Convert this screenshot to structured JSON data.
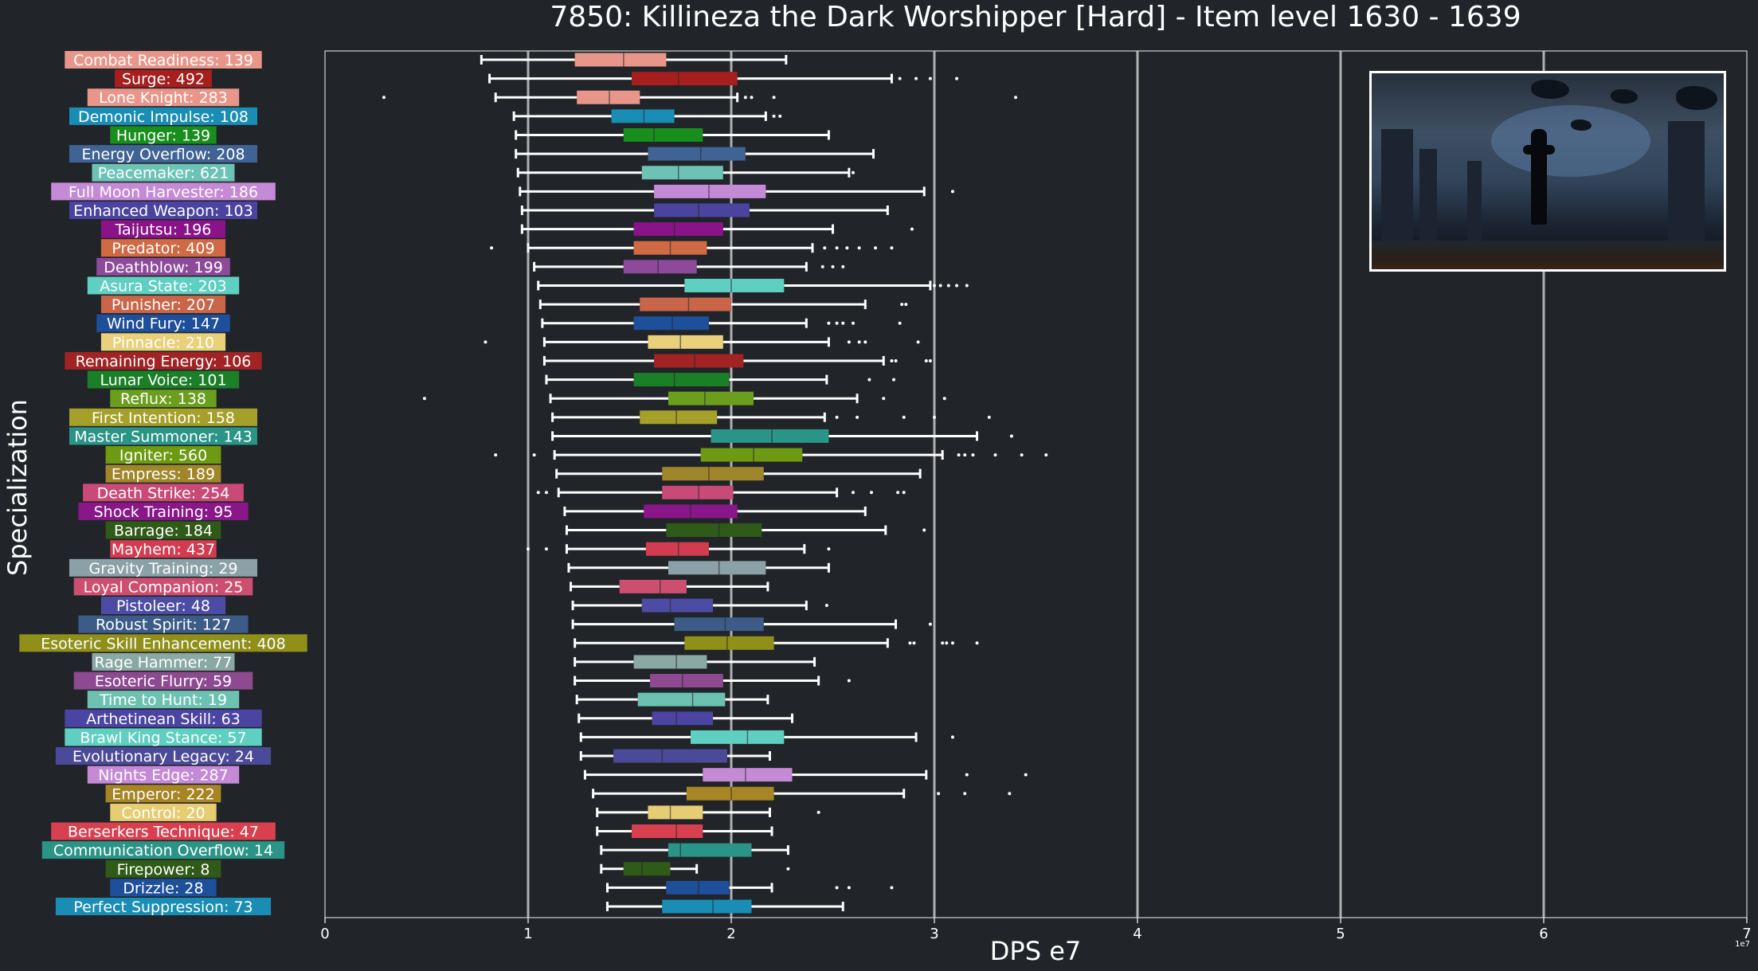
{
  "chart_data": {
    "type": "box",
    "title": "7850: Killineza the Dark Worshipper [Hard] - Item level 1630 - 1639",
    "xlabel": "DPS e7",
    "ylabel": "Specialization",
    "offset_label": "1e7",
    "xlim": [
      0,
      7
    ],
    "x_ticks": [
      "0",
      "1",
      "2",
      "3",
      "4",
      "5",
      "6",
      "7"
    ],
    "grid": "vertical",
    "whisker_color": "#ffffff",
    "series": [
      {
        "label": "Combat Readiness: 139",
        "color": "#e8968a",
        "wl": 0.77,
        "q1": 1.23,
        "med": 1.47,
        "q3": 1.68,
        "wh": 2.27,
        "fliers": []
      },
      {
        "label": "Surge: 492",
        "color": "#a61e1e",
        "wl": 0.81,
        "q1": 1.51,
        "med": 1.74,
        "q3": 2.03,
        "wh": 2.79,
        "fliers": [
          2.83,
          2.91,
          2.98,
          3.11
        ]
      },
      {
        "label": "Lone Knight: 283",
        "color": "#e8968a",
        "wl": 0.84,
        "q1": 1.24,
        "med": 1.4,
        "q3": 1.55,
        "wh": 2.03,
        "fliers": [
          0.29,
          2.07,
          2.1,
          2.21,
          3.4
        ]
      },
      {
        "label": "Demonic Impulse: 108",
        "color": "#1a8db5",
        "wl": 0.93,
        "q1": 1.41,
        "med": 1.57,
        "q3": 1.72,
        "wh": 2.17,
        "fliers": [
          2.21,
          2.24
        ]
      },
      {
        "label": "Hunger: 139",
        "color": "#188f1c",
        "wl": 0.94,
        "q1": 1.47,
        "med": 1.62,
        "q3": 1.86,
        "wh": 2.48,
        "fliers": []
      },
      {
        "label": "Energy Overflow: 208",
        "color": "#3f6394",
        "wl": 0.94,
        "q1": 1.59,
        "med": 1.85,
        "q3": 2.07,
        "wh": 2.7,
        "fliers": []
      },
      {
        "label": "Peacemaker: 621",
        "color": "#6cc3b5",
        "wl": 0.95,
        "q1": 1.56,
        "med": 1.74,
        "q3": 1.96,
        "wh": 2.58,
        "fliers": [
          2.6
        ]
      },
      {
        "label": "Full Moon Harvester: 186",
        "color": "#c58ad6",
        "wl": 0.96,
        "q1": 1.62,
        "med": 1.89,
        "q3": 2.17,
        "wh": 2.95,
        "fliers": [
          3.09
        ]
      },
      {
        "label": "Enhanced Weapon: 103",
        "color": "#4a44a0",
        "wl": 0.97,
        "q1": 1.62,
        "med": 1.84,
        "q3": 2.09,
        "wh": 2.77,
        "fliers": []
      },
      {
        "label": "Taijutsu: 196",
        "color": "#8a138a",
        "wl": 0.97,
        "q1": 1.52,
        "med": 1.72,
        "q3": 1.96,
        "wh": 2.5,
        "fliers": [
          2.89
        ]
      },
      {
        "label": "Predator: 409",
        "color": "#d06a45",
        "wl": 1.0,
        "q1": 1.52,
        "med": 1.7,
        "q3": 1.88,
        "wh": 2.4,
        "fliers": [
          0.82,
          2.46,
          2.52,
          2.57,
          2.63,
          2.71,
          2.79
        ]
      },
      {
        "label": "Deathblow: 199",
        "color": "#8e4a9a",
        "wl": 1.03,
        "q1": 1.47,
        "med": 1.64,
        "q3": 1.83,
        "wh": 2.37,
        "fliers": [
          2.45,
          2.5,
          2.55
        ]
      },
      {
        "label": "Asura State: 203",
        "color": "#5ecfc1",
        "wl": 1.05,
        "q1": 1.77,
        "med": 2.0,
        "q3": 2.26,
        "wh": 2.98,
        "fliers": [
          3.0,
          3.03,
          3.07,
          3.11,
          3.16
        ]
      },
      {
        "label": "Punisher: 207",
        "color": "#c9664a",
        "wl": 1.06,
        "q1": 1.55,
        "med": 1.79,
        "q3": 2.0,
        "wh": 2.66,
        "fliers": [
          2.84,
          2.86
        ]
      },
      {
        "label": "Wind Fury: 147",
        "color": "#1e4f9a",
        "wl": 1.07,
        "q1": 1.52,
        "med": 1.71,
        "q3": 1.89,
        "wh": 2.37,
        "fliers": [
          2.48,
          2.52,
          2.55,
          2.6,
          2.83
        ]
      },
      {
        "label": "Pinnacle: 210",
        "color": "#e9d07a",
        "wl": 1.08,
        "q1": 1.59,
        "med": 1.75,
        "q3": 1.96,
        "wh": 2.48,
        "fliers": [
          0.79,
          2.58,
          2.63,
          2.66,
          2.92
        ]
      },
      {
        "label": "Remaining Energy: 106",
        "color": "#a12324",
        "wl": 1.08,
        "q1": 1.62,
        "med": 1.82,
        "q3": 2.06,
        "wh": 2.75,
        "fliers": [
          2.79,
          2.81,
          2.96,
          2.98
        ]
      },
      {
        "label": "Lunar Voice: 101",
        "color": "#1a7f27",
        "wl": 1.09,
        "q1": 1.52,
        "med": 1.72,
        "q3": 1.99,
        "wh": 2.47,
        "fliers": [
          2.68,
          2.8
        ]
      },
      {
        "label": "Reflux: 138",
        "color": "#6b9e1c",
        "wl": 1.11,
        "q1": 1.69,
        "med": 1.87,
        "q3": 2.11,
        "wh": 2.62,
        "fliers": [
          0.49,
          2.75,
          3.05
        ]
      },
      {
        "label": "First Intention: 158",
        "color": "#a4a02a",
        "wl": 1.12,
        "q1": 1.55,
        "med": 1.73,
        "q3": 1.93,
        "wh": 2.46,
        "fliers": [
          2.52,
          2.62,
          2.85,
          3.0,
          3.27
        ]
      },
      {
        "label": "Master Summoner: 143",
        "color": "#2a9486",
        "wl": 1.12,
        "q1": 1.9,
        "med": 2.2,
        "q3": 2.48,
        "wh": 3.21,
        "fliers": [
          3.38
        ]
      },
      {
        "label": "Igniter: 560",
        "color": "#6d9a12",
        "wl": 1.13,
        "q1": 1.85,
        "med": 2.11,
        "q3": 2.35,
        "wh": 3.04,
        "fliers": [
          0.84,
          1.03,
          3.12,
          3.15,
          3.19,
          3.3,
          3.43,
          3.55
        ]
      },
      {
        "label": "Empress: 189",
        "color": "#a0862a",
        "wl": 1.14,
        "q1": 1.66,
        "med": 1.89,
        "q3": 2.16,
        "wh": 2.93,
        "fliers": []
      },
      {
        "label": "Death Strike: 254",
        "color": "#c94a76",
        "wl": 1.15,
        "q1": 1.66,
        "med": 1.84,
        "q3": 2.01,
        "wh": 2.52,
        "fliers": [
          1.05,
          1.09,
          2.6,
          2.69,
          2.82,
          2.85
        ]
      },
      {
        "label": "Shock Training: 95",
        "color": "#8a178a",
        "wl": 1.18,
        "q1": 1.57,
        "med": 1.8,
        "q3": 2.03,
        "wh": 2.66,
        "fliers": []
      },
      {
        "label": "Barrage: 184",
        "color": "#2f5a18",
        "wl": 1.19,
        "q1": 1.68,
        "med": 1.94,
        "q3": 2.15,
        "wh": 2.76,
        "fliers": [
          2.95
        ]
      },
      {
        "label": "Mayhem: 437",
        "color": "#d23c50",
        "wl": 1.19,
        "q1": 1.58,
        "med": 1.74,
        "q3": 1.89,
        "wh": 2.36,
        "fliers": [
          1.0,
          1.09,
          2.48
        ]
      },
      {
        "label": "Gravity Training: 29",
        "color": "#8aa1a8",
        "wl": 1.2,
        "q1": 1.69,
        "med": 1.94,
        "q3": 2.17,
        "wh": 2.48,
        "fliers": []
      },
      {
        "label": "Loyal Companion: 25",
        "color": "#cc4f70",
        "wl": 1.21,
        "q1": 1.45,
        "med": 1.65,
        "q3": 1.78,
        "wh": 2.18,
        "fliers": []
      },
      {
        "label": "Pistoleer: 48",
        "color": "#4d4ca4",
        "wl": 1.22,
        "q1": 1.56,
        "med": 1.7,
        "q3": 1.91,
        "wh": 2.37,
        "fliers": [
          2.47
        ]
      },
      {
        "label": "Robust Spirit: 127",
        "color": "#3c5c87",
        "wl": 1.22,
        "q1": 1.72,
        "med": 1.97,
        "q3": 2.16,
        "wh": 2.81,
        "fliers": [
          2.98
        ]
      },
      {
        "label": "Esoteric Skill Enhancement: 408",
        "color": "#8f8f1a",
        "wl": 1.23,
        "q1": 1.77,
        "med": 1.98,
        "q3": 2.21,
        "wh": 2.77,
        "fliers": [
          2.88,
          2.9,
          3.04,
          3.06,
          3.09,
          3.21
        ]
      },
      {
        "label": "Rage Hammer: 77",
        "color": "#8aa8a4",
        "wl": 1.23,
        "q1": 1.52,
        "med": 1.73,
        "q3": 1.88,
        "wh": 2.41,
        "fliers": []
      },
      {
        "label": "Esoteric Flurry: 59",
        "color": "#8e4a90",
        "wl": 1.23,
        "q1": 1.6,
        "med": 1.76,
        "q3": 1.96,
        "wh": 2.43,
        "fliers": [
          2.58
        ]
      },
      {
        "label": "Time to Hunt: 19",
        "color": "#6cc1b1",
        "wl": 1.24,
        "q1": 1.54,
        "med": 1.81,
        "q3": 1.97,
        "wh": 2.18,
        "fliers": []
      },
      {
        "label": "Arthetinean Skill: 63",
        "color": "#4b44a2",
        "wl": 1.25,
        "q1": 1.61,
        "med": 1.73,
        "q3": 1.91,
        "wh": 2.3,
        "fliers": []
      },
      {
        "label": "Brawl King Stance: 57",
        "color": "#5ecfc1",
        "wl": 1.26,
        "q1": 1.8,
        "med": 2.08,
        "q3": 2.26,
        "wh": 2.91,
        "fliers": [
          3.09
        ]
      },
      {
        "label": "Evolutionary Legacy: 24",
        "color": "#4a4a98",
        "wl": 1.26,
        "q1": 1.42,
        "med": 1.66,
        "q3": 1.98,
        "wh": 2.19,
        "fliers": []
      },
      {
        "label": "Nights Edge: 287",
        "color": "#c58ad6",
        "wl": 1.28,
        "q1": 1.86,
        "med": 2.07,
        "q3": 2.3,
        "wh": 2.96,
        "fliers": [
          3.16,
          3.45
        ]
      },
      {
        "label": "Emperor: 222",
        "color": "#a78525",
        "wl": 1.32,
        "q1": 1.78,
        "med": 2.0,
        "q3": 2.21,
        "wh": 2.85,
        "fliers": [
          3.02,
          3.15,
          3.37
        ]
      },
      {
        "label": "Control: 20",
        "color": "#e6cc73",
        "wl": 1.34,
        "q1": 1.59,
        "med": 1.7,
        "q3": 1.86,
        "wh": 2.19,
        "fliers": [
          2.43
        ]
      },
      {
        "label": "Berserkers Technique: 47",
        "color": "#d84050",
        "wl": 1.34,
        "q1": 1.51,
        "med": 1.73,
        "q3": 1.86,
        "wh": 2.2,
        "fliers": []
      },
      {
        "label": "Communication Overflow: 14",
        "color": "#2a9486",
        "wl": 1.36,
        "q1": 1.69,
        "med": 1.75,
        "q3": 2.1,
        "wh": 2.28,
        "fliers": []
      },
      {
        "label": "Firepower: 8",
        "color": "#2f5a18",
        "wl": 1.36,
        "q1": 1.47,
        "med": 1.56,
        "q3": 1.7,
        "wh": 1.83,
        "fliers": [
          2.28
        ]
      },
      {
        "label": "Drizzle: 28",
        "color": "#1e4f9a",
        "wl": 1.39,
        "q1": 1.68,
        "med": 1.84,
        "q3": 1.99,
        "wh": 2.2,
        "fliers": [
          2.52,
          2.58,
          2.79
        ]
      },
      {
        "label": "Perfect Suppression: 73",
        "color": "#1a8db5",
        "wl": 1.39,
        "q1": 1.66,
        "med": 1.91,
        "q3": 2.1,
        "wh": 2.55,
        "fliers": []
      }
    ]
  }
}
